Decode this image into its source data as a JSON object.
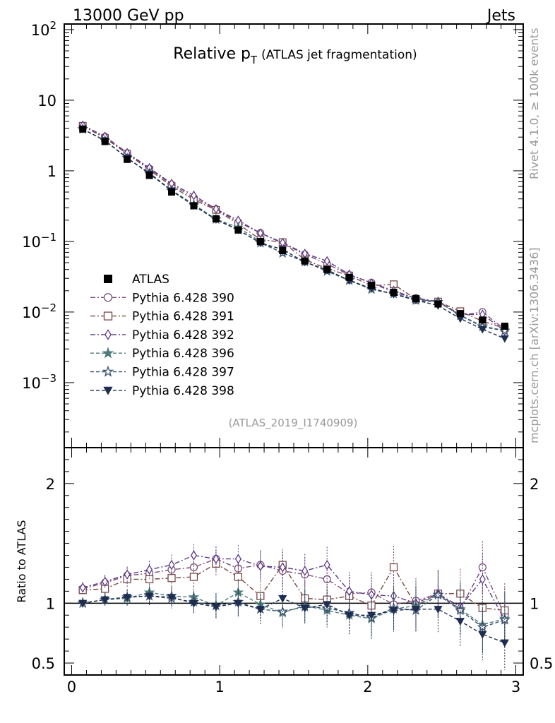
{
  "header": {
    "left": "13000 GeV pp",
    "right": "Jets"
  },
  "side_labels": {
    "rivet": "Rivet 4.1.0, ≥ 100k events",
    "mcplots": "mcplots.cern.ch [arXiv:1306.3436]"
  },
  "chart_data": {
    "type": "line",
    "title_main": "Relative p",
    "title_sub": "T",
    "title_rest": "(ATLAS jet fragmentation)",
    "analysis_id": "(ATLAS_2019_I1740909)",
    "x": [
      0.075,
      0.225,
      0.375,
      0.525,
      0.675,
      0.825,
      0.975,
      1.125,
      1.275,
      1.425,
      1.575,
      1.725,
      1.875,
      2.025,
      2.175,
      2.325,
      2.475,
      2.625,
      2.775,
      2.925
    ],
    "xlim": [
      -0.05,
      3.05
    ],
    "xticks": [
      "0",
      "1",
      "2",
      "3"
    ],
    "main": {
      "ylim": [
        0.00012,
        120
      ],
      "yscale": "log",
      "yticks": [
        {
          "base": "10",
          "exp": "2"
        },
        {
          "base": "10",
          "exp": ""
        },
        {
          "base": "1",
          "exp": ""
        },
        {
          "base": "10",
          "exp": "−1"
        },
        {
          "base": "10",
          "exp": "−2"
        },
        {
          "base": "10",
          "exp": "−3"
        }
      ]
    },
    "ratio": {
      "ylabel": "Ratio to ATLAS",
      "ylim": [
        0.4,
        2.3
      ],
      "yticks": [
        "2",
        "1",
        "0.5"
      ]
    },
    "data_series": {
      "name": "ATLAS",
      "values": [
        3.9,
        2.6,
        1.45,
        0.86,
        0.5,
        0.32,
        0.21,
        0.145,
        0.1,
        0.074,
        0.053,
        0.04,
        0.031,
        0.024,
        0.019,
        0.0155,
        0.013,
        0.0095,
        0.0077,
        0.0063
      ]
    },
    "series": [
      {
        "name": "Pythia 6.428 390",
        "color": "#7b4f7c",
        "marker": "circle-open",
        "dash": "dashdot",
        "ratio": [
          1.12,
          1.17,
          1.23,
          1.25,
          1.28,
          1.3,
          1.37,
          1.29,
          1.32,
          1.27,
          1.24,
          1.2,
          1.08,
          1.09,
          0.99,
          1.02,
          1.08,
          0.95,
          1.3,
          0.9
        ]
      },
      {
        "name": "Pythia 6.428 391",
        "color": "#7a4a4a",
        "marker": "square-open",
        "dash": "dashdot",
        "ratio": [
          1.11,
          1.12,
          1.2,
          1.2,
          1.21,
          1.22,
          1.33,
          1.22,
          1.06,
          1.32,
          1.04,
          1.03,
          1.06,
          0.98,
          1.3,
          0.98,
          1.08,
          1.08,
          0.96,
          0.94
        ]
      },
      {
        "name": "Pythia 6.428 392",
        "color": "#5b3a8a",
        "marker": "diamond-open",
        "dash": "dashdot",
        "ratio": [
          1.13,
          1.18,
          1.24,
          1.28,
          1.32,
          1.4,
          1.37,
          1.37,
          1.31,
          1.3,
          1.27,
          1.32,
          1.1,
          1.07,
          1.06,
          1.0,
          1.08,
          0.97,
          1.2,
          0.86
        ]
      },
      {
        "name": "Pythia 6.428 396",
        "color": "#4f7a7a",
        "marker": "star-filled",
        "dash": "dashed",
        "ratio": [
          1.0,
          1.03,
          1.04,
          1.09,
          1.06,
          1.05,
          0.98,
          1.09,
          0.99,
          0.92,
          0.98,
          0.94,
          0.9,
          0.87,
          0.95,
          0.98,
          1.07,
          0.95,
          0.82,
          0.87
        ]
      },
      {
        "name": "Pythia 6.428 397",
        "color": "#3b5470",
        "marker": "star-open",
        "dash": "dashed",
        "ratio": [
          1.0,
          1.03,
          1.05,
          1.06,
          1.04,
          1.01,
          0.98,
          1.01,
          0.95,
          0.93,
          0.97,
          0.96,
          0.92,
          0.88,
          0.96,
          0.94,
          1.07,
          0.94,
          0.8,
          0.86
        ]
      },
      {
        "name": "Pythia 6.428 398",
        "color": "#1f2d50",
        "marker": "triangle-down-filled",
        "dash": "dashed",
        "ratio": [
          1.0,
          1.03,
          1.05,
          1.06,
          1.05,
          1.0,
          0.97,
          1.0,
          0.95,
          1.04,
          0.96,
          0.99,
          0.9,
          0.9,
          0.94,
          0.95,
          0.95,
          0.85,
          0.74,
          0.67
        ]
      }
    ]
  }
}
